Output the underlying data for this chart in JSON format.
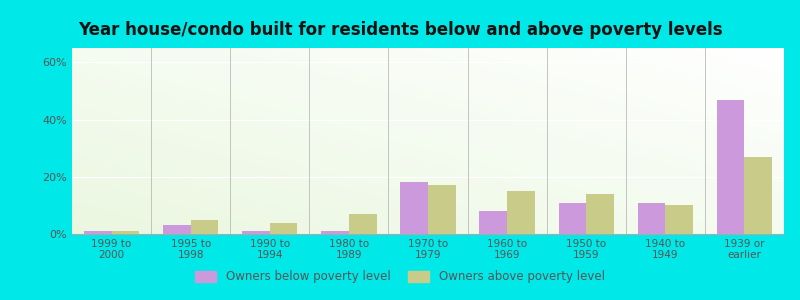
{
  "title": "Year house/condo built for residents below and above poverty levels",
  "categories": [
    "1999 to\n2000",
    "1995 to\n1998",
    "1990 to\n1994",
    "1980 to\n1989",
    "1970 to\n1979",
    "1960 to\n1969",
    "1950 to\n1959",
    "1940 to\n1949",
    "1939 or\nearlier"
  ],
  "below_poverty": [
    1.0,
    3.0,
    1.2,
    1.2,
    18.0,
    8.0,
    11.0,
    11.0,
    47.0
  ],
  "above_poverty": [
    1.2,
    5.0,
    4.0,
    7.0,
    17.0,
    15.0,
    14.0,
    10.0,
    27.0
  ],
  "below_color": "#cc99dd",
  "above_color": "#c8cc88",
  "ylim": [
    0,
    65
  ],
  "yticks": [
    0,
    20,
    40,
    60
  ],
  "ytick_labels": [
    "0%",
    "20%",
    "40%",
    "60%"
  ],
  "outer_bg": "#00e8e8",
  "legend_below": "Owners below poverty level",
  "legend_above": "Owners above poverty level",
  "title_fontsize": 12,
  "bar_width": 0.35
}
